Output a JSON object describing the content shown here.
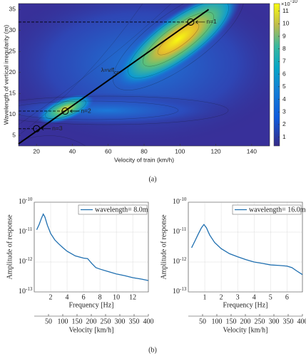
{
  "chart_data": [
    {
      "type": "contour",
      "x_label": "Velocity of train (km/h)",
      "y_label": "Wavelength of vertical irregularity (m)",
      "xlim": [
        10,
        150
      ],
      "xticks": [
        20,
        40,
        60,
        80,
        100,
        120,
        140
      ],
      "ylim": [
        2.5,
        36.4
      ],
      "yticks": [
        5,
        10,
        15,
        20,
        25,
        30,
        35
      ],
      "colorbar": {
        "clim": [
          0.3,
          11.6
        ],
        "ticks": [
          1,
          2,
          3,
          4,
          5,
          6,
          7,
          8,
          9,
          10,
          11
        ],
        "scale_label": "×10",
        "scale_exponent": "-10"
      },
      "critical_line": {
        "x": [
          10,
          116
        ],
        "y": [
          3,
          35
        ],
        "label": "λ=v/f",
        "label_subscript": "cp"
      },
      "resonances": {
        "labels": [
          "n=1",
          "n=2",
          "n=3"
        ],
        "x": [
          106,
          36,
          20
        ],
        "y": [
          32,
          10.8,
          6.6
        ]
      },
      "caption": "(a)"
    },
    {
      "type": "line",
      "x_label": "Frequency [Hz]",
      "y_label": "Amplitude of response",
      "xlim": [
        0,
        13.9
      ],
      "xticks": [
        2,
        4,
        6,
        8,
        10,
        12
      ],
      "ylim": [
        1e-13,
        1e-10
      ],
      "y_scale": "log",
      "yticks": [
        {
          "value": 1e-13,
          "label": "10",
          "exponent": "-13"
        },
        {
          "value": 1e-12,
          "label": "10",
          "exponent": "-12"
        },
        {
          "value": 1e-11,
          "label": "10",
          "exponent": "-11"
        },
        {
          "value": 1e-10,
          "label": "10",
          "exponent": "-10"
        }
      ],
      "x2_label": "Velocity [km/h]",
      "x2lim": [
        0,
        400
      ],
      "x2ticks": [
        50,
        100,
        150,
        200,
        250,
        300,
        350,
        400
      ],
      "x": [
        0.3,
        0.6,
        0.9,
        1.1,
        1.3,
        1.6,
        2,
        2.5,
        3,
        3.5,
        4,
        5,
        6,
        6.5,
        7,
        7.5,
        8,
        9,
        10,
        11,
        12,
        13,
        13.9
      ],
      "series": [
        {
          "name": "wavelength= 8.0m",
          "color": "#1f6fb0",
          "values": [
            1.2e-11,
            1.8e-11,
            3e-11,
            4e-11,
            3.2e-11,
            1.7e-11,
            9e-12,
            5.5e-12,
            4e-12,
            3e-12,
            2.3e-12,
            1.6e-12,
            1.35e-12,
            1.3e-12,
            9e-13,
            6.5e-13,
            5.8e-13,
            4.8e-13,
            4e-13,
            3.5e-13,
            3e-13,
            2.7e-13,
            2.4e-13
          ]
        }
      ],
      "legend": "upper right",
      "grid": true
    },
    {
      "type": "line",
      "x_label": "Frequency [Hz]",
      "y_label": "Amplitude of response",
      "xlim": [
        0,
        6.94
      ],
      "xticks": [
        1,
        2,
        3,
        4,
        5,
        6
      ],
      "ylim": [
        1e-13,
        1e-10
      ],
      "y_scale": "log",
      "yticks": [
        {
          "value": 1e-13,
          "label": "10",
          "exponent": "-13"
        },
        {
          "value": 1e-12,
          "label": "10",
          "exponent": "-12"
        },
        {
          "value": 1e-11,
          "label": "10",
          "exponent": "-11"
        },
        {
          "value": 1e-10,
          "label": "10",
          "exponent": "-10"
        }
      ],
      "x2_label": "Velocity [km/h]",
      "x2lim": [
        0,
        400
      ],
      "x2ticks": [
        50,
        100,
        150,
        200,
        250,
        300,
        350,
        400
      ],
      "x": [
        0.2,
        0.4,
        0.6,
        0.8,
        0.95,
        1.1,
        1.3,
        1.6,
        2,
        2.5,
        3,
        3.5,
        4,
        4.5,
        5,
        5.5,
        6,
        6.3,
        6.6,
        6.94
      ],
      "series": [
        {
          "name": "wavelength= 16.0m",
          "color": "#1f6fb0",
          "values": [
            3e-12,
            5e-12,
            8.5e-12,
            1.4e-11,
            1.8e-11,
            1.4e-11,
            8e-12,
            4.5e-12,
            2.8e-12,
            1.9e-12,
            1.5e-12,
            1.2e-12,
            1e-12,
            9e-13,
            8e-13,
            7.7e-13,
            7.3e-13,
            6.5e-13,
            5e-13,
            3.8e-13
          ]
        }
      ],
      "legend": "upper right",
      "grid": true,
      "caption": "(b)"
    }
  ]
}
